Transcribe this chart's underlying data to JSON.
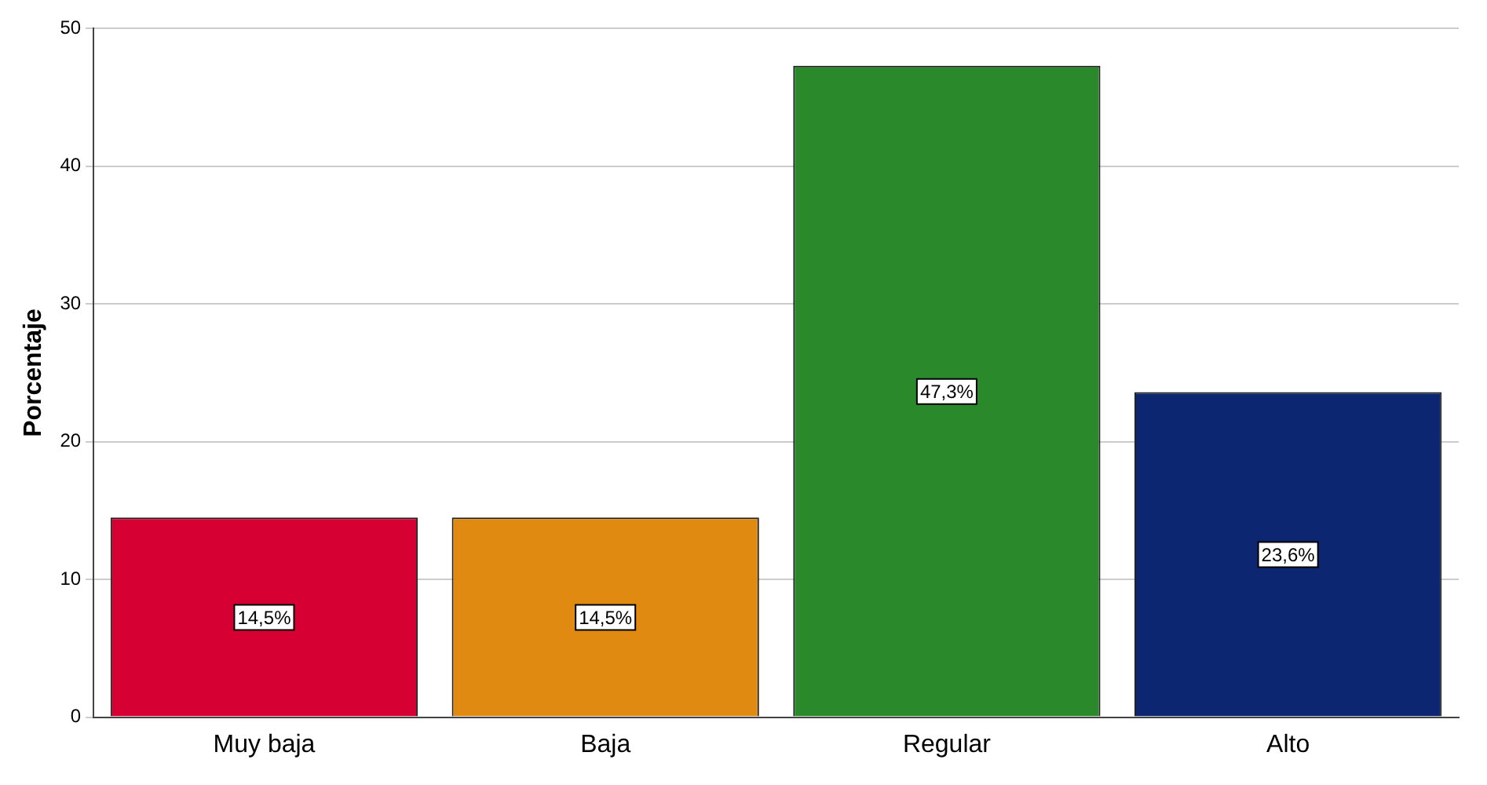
{
  "chart_data": {
    "type": "bar",
    "ylabel": "Porcentaje",
    "categories": [
      "Muy baja",
      "Baja",
      "Regular",
      "Alto"
    ],
    "values": [
      14.5,
      14.5,
      47.3,
      23.6
    ],
    "value_labels": [
      "14,5%",
      "14,5%",
      "47,3%",
      "23,6%"
    ],
    "colors": [
      "#d60032",
      "#e08a12",
      "#2a892b",
      "#0c2671"
    ],
    "ylim": [
      0,
      50
    ],
    "yticks": [
      0,
      10,
      20,
      30,
      40,
      50
    ],
    "grid": "y",
    "legend": false
  }
}
